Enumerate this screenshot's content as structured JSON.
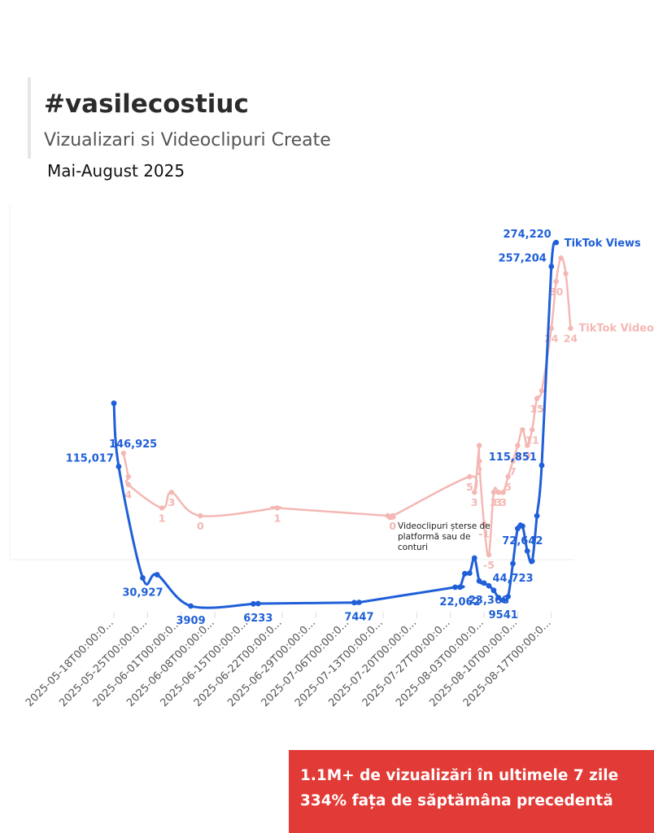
{
  "header": {
    "title": "#vasilecostiuc",
    "subtitle": "Vizualizari si Videoclipuri Create",
    "period": "Mai-August 2025"
  },
  "callout": {
    "line1": "1.1M+ de vizualizări în ultimele 7 zile",
    "line2": "334% fața de săptămâna precedentă"
  },
  "colors": {
    "views": "#1f5fd8",
    "videos": "#f4b8b4",
    "callout_bg": "#e23a36"
  },
  "chart_data": {
    "type": "line",
    "x_tick_labels": [
      "2025-05-18T00:00:0...",
      "2025-05-25T00:00:0...",
      "2025-06-01T00:00:0...",
      "2025-06-08T00:00:0...",
      "2025-06-15T00:00:0...",
      "2025-06-22T00:00:0...",
      "2025-06-29T00:00:0...",
      "2025-07-06T00:00:0...",
      "2025-07-13T00:00:0...",
      "2025-07-20T00:00:0...",
      "2025-07-27T00:00:0...",
      "2025-08-03T00:00:0...",
      "2025-08-10T00:00:0...",
      "2025-08-17T00:00:0..."
    ],
    "x_range": [
      "2025-05-18",
      "2025-08-23"
    ],
    "series": [
      {
        "name": "TikTok Views",
        "points": [
          {
            "x": "2025-05-18",
            "y": 160000
          },
          {
            "x": "2025-05-19",
            "y": 115017,
            "label": "115,017"
          },
          {
            "x": "2025-05-24",
            "y": 30927,
            "label": "30,927"
          },
          {
            "x": "2025-05-27",
            "y": 34000
          },
          {
            "x": "2025-06-03",
            "y": 3909,
            "label": "3909"
          },
          {
            "x": "2025-06-16",
            "y": 6000
          },
          {
            "x": "2025-06-17",
            "y": 6233,
            "label": "6233"
          },
          {
            "x": "2025-07-07",
            "y": 7200
          },
          {
            "x": "2025-07-08",
            "y": 7447,
            "label": "7447"
          },
          {
            "x": "2025-07-28",
            "y": 22000
          },
          {
            "x": "2025-07-29",
            "y": 22062,
            "label": "22,062"
          },
          {
            "x": "2025-07-30",
            "y": 35000
          },
          {
            "x": "2025-07-31",
            "y": 35500
          },
          {
            "x": "2025-08-01",
            "y": 50000
          },
          {
            "x": "2025-08-02",
            "y": 28000
          },
          {
            "x": "2025-08-03",
            "y": 26000
          },
          {
            "x": "2025-08-04",
            "y": 23368,
            "label": "23,368"
          },
          {
            "x": "2025-08-05",
            "y": 19000
          },
          {
            "x": "2025-08-06",
            "y": 12000
          },
          {
            "x": "2025-08-07",
            "y": 9541,
            "label": "9541"
          },
          {
            "x": "2025-08-08",
            "y": 13000
          },
          {
            "x": "2025-08-09",
            "y": 44723,
            "label": "44,723"
          },
          {
            "x": "2025-08-10",
            "y": 71000
          },
          {
            "x": "2025-08-11",
            "y": 72642,
            "label": "72,642"
          },
          {
            "x": "2025-08-12",
            "y": 55000
          },
          {
            "x": "2025-08-13",
            "y": 47000
          },
          {
            "x": "2025-08-14",
            "y": 80000
          },
          {
            "x": "2025-08-15",
            "y": 115851,
            "label": "115,851"
          },
          {
            "x": "2025-08-17",
            "y": 257204,
            "label": "257,204"
          },
          {
            "x": "2025-08-18",
            "y": 274220,
            "label": "274,220"
          }
        ],
        "extra_label": {
          "text": "146,925",
          "near": "2025-05-18"
        }
      },
      {
        "name": "TikTok Video",
        "points": [
          {
            "x": "2025-05-20",
            "y": 8
          },
          {
            "x": "2025-05-21",
            "y": 5
          },
          {
            "x": "2025-05-21",
            "y": 4,
            "label": "4"
          },
          {
            "x": "2025-05-28",
            "y": 1,
            "label": "1"
          },
          {
            "x": "2025-05-30",
            "y": 3,
            "label": "3"
          },
          {
            "x": "2025-06-05",
            "y": 0,
            "label": "0"
          },
          {
            "x": "2025-06-21",
            "y": 1
          },
          {
            "x": "2025-06-21",
            "y": 1,
            "label": "1"
          },
          {
            "x": "2025-07-14",
            "y": 0
          },
          {
            "x": "2025-07-15",
            "y": 0,
            "label": "0"
          },
          {
            "x": "2025-07-31",
            "y": 5,
            "label": "5"
          },
          {
            "x": "2025-08-01",
            "y": 3,
            "label": "3"
          },
          {
            "x": "2025-08-02",
            "y": 9
          },
          {
            "x": "2025-08-02",
            "y": 7,
            "label": "7"
          },
          {
            "x": "2025-08-03",
            "y": -1,
            "label": "-1"
          },
          {
            "x": "2025-08-04",
            "y": -5,
            "label": "-5"
          },
          {
            "x": "2025-08-05",
            "y": 3,
            "label": "3"
          },
          {
            "x": "2025-08-06",
            "y": 3,
            "label": "3"
          },
          {
            "x": "2025-08-07",
            "y": 3,
            "label": "3"
          },
          {
            "x": "2025-08-08",
            "y": 5,
            "label": "5"
          },
          {
            "x": "2025-08-09",
            "y": 7,
            "label": "7"
          },
          {
            "x": "2025-08-10",
            "y": 9,
            "label": "9"
          },
          {
            "x": "2025-08-11",
            "y": 11
          },
          {
            "x": "2025-08-12",
            "y": 9,
            "label": "9"
          },
          {
            "x": "2025-08-13",
            "y": 11,
            "label": "11"
          },
          {
            "x": "2025-08-14",
            "y": 15,
            "label": "15"
          },
          {
            "x": "2025-08-15",
            "y": 16
          },
          {
            "x": "2025-08-17",
            "y": 24,
            "label": "24"
          },
          {
            "x": "2025-08-18",
            "y": 30,
            "label": "30"
          },
          {
            "x": "2025-08-19",
            "y": 33
          },
          {
            "x": "2025-08-20",
            "y": 31
          },
          {
            "x": "2025-08-21",
            "y": 24,
            "label": "24"
          }
        ]
      }
    ],
    "annotations": [
      "Videoclipuri șterse de",
      "platformă sau de",
      "conturi"
    ],
    "legend": "end-of-line labels",
    "grid": false
  }
}
